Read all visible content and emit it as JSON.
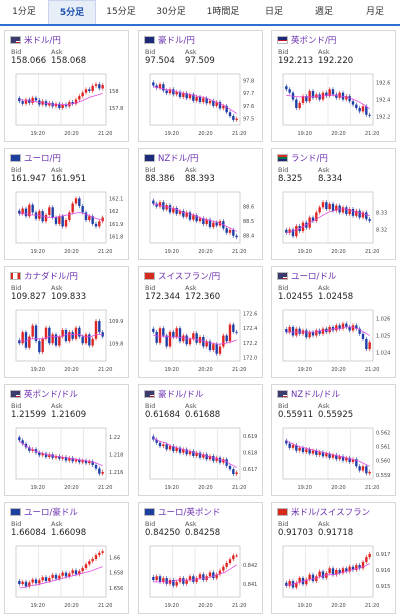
{
  "tabs": [
    {
      "label": "1分足",
      "active": false
    },
    {
      "label": "5分足",
      "active": true
    },
    {
      "label": "15分足",
      "active": false
    },
    {
      "label": "30分足",
      "active": false
    },
    {
      "label": "1時間足",
      "active": false
    },
    {
      "label": "日足",
      "active": false
    },
    {
      "label": "週足",
      "active": false
    },
    {
      "label": "月足",
      "active": false
    }
  ],
  "bid_label": "Bid",
  "ask_label": "Ask",
  "x_ticks": [
    "19:20",
    "20:20",
    "21:20"
  ],
  "colors": {
    "up": "#e02424",
    "down": "#1f3fa8",
    "ma": "#e04be0",
    "grid": "#dddddd",
    "accent": "#2f6fd0"
  },
  "cards": [
    {
      "pair": "米ドル/円",
      "flag": "us",
      "bid": "158.066",
      "ask": "158.068",
      "chart_data": {
        "type": "candlestick",
        "y_ticks": [
          "158",
          "157.8"
        ],
        "ylim": [
          157.6,
          158.2
        ],
        "tick_vals": [
          158,
          157.8
        ],
        "closes": [
          157.88,
          157.85,
          157.9,
          157.86,
          157.92,
          157.89,
          157.84,
          157.88,
          157.83,
          157.86,
          157.82,
          157.85,
          157.8,
          157.84,
          157.82,
          157.87,
          157.85,
          157.9,
          157.94,
          157.98,
          158.02,
          158.0,
          158.06,
          158.08,
          158.03,
          158.07
        ],
        "ma": [
          157.9,
          157.89,
          157.88,
          157.87,
          157.86,
          157.85,
          157.84,
          157.84,
          157.84,
          157.85,
          157.87,
          157.9,
          157.93,
          157.95,
          157.97
        ]
      }
    },
    {
      "pair": "豪ドル/円",
      "flag": "au",
      "bid": "97.504",
      "ask": "97.509",
      "chart_data": {
        "type": "candlestick",
        "y_ticks": [
          "97.8",
          "97.7",
          "97.6",
          "97.5"
        ],
        "ylim": [
          97.45,
          97.85
        ],
        "tick_vals": [
          97.8,
          97.7,
          97.6,
          97.5
        ],
        "closes": [
          97.76,
          97.74,
          97.77,
          97.72,
          97.7,
          97.73,
          97.69,
          97.71,
          97.67,
          97.7,
          97.66,
          97.69,
          97.64,
          97.67,
          97.63,
          97.66,
          97.62,
          97.64,
          97.6,
          97.63,
          97.58,
          97.6,
          97.55,
          97.52,
          97.49,
          97.5
        ],
        "ma": [
          97.75,
          97.74,
          97.73,
          97.72,
          97.71,
          97.7,
          97.69,
          97.68,
          97.67,
          97.66,
          97.64,
          97.62,
          97.6,
          97.57,
          97.54
        ]
      }
    },
    {
      "pair": "英ポンド/円",
      "flag": "gb",
      "bid": "192.213",
      "ask": "192.220",
      "chart_data": {
        "type": "candlestick",
        "y_ticks": [
          "192.6",
          "192.4",
          "192.2"
        ],
        "ylim": [
          192.1,
          192.7
        ],
        "tick_vals": [
          192.6,
          192.4,
          192.2
        ],
        "closes": [
          192.52,
          192.48,
          192.4,
          192.3,
          192.36,
          192.44,
          192.38,
          192.5,
          192.42,
          192.46,
          192.4,
          192.48,
          192.44,
          192.52,
          192.46,
          192.42,
          192.48,
          192.4,
          192.44,
          192.38,
          192.34,
          192.3,
          192.26,
          192.32,
          192.22,
          192.21
        ],
        "ma": [
          192.45,
          192.44,
          192.43,
          192.43,
          192.43,
          192.44,
          192.44,
          192.45,
          192.45,
          192.44,
          192.43,
          192.41,
          192.38,
          192.34,
          192.29
        ]
      }
    },
    {
      "pair": "ユーロ/円",
      "flag": "eu",
      "bid": "161.947",
      "ask": "161.951",
      "chart_data": {
        "type": "candlestick",
        "y_ticks": [
          "162.1",
          "162",
          "161.9",
          "161.8"
        ],
        "ylim": [
          161.75,
          162.15
        ],
        "tick_vals": [
          162.1,
          162,
          161.9,
          161.8
        ],
        "closes": [
          161.98,
          162.02,
          161.96,
          162.05,
          161.99,
          161.94,
          162.0,
          161.92,
          161.97,
          162.03,
          161.95,
          161.9,
          161.96,
          161.88,
          161.93,
          161.99,
          162.06,
          162.1,
          162.04,
          161.99,
          161.93,
          161.96,
          161.9,
          161.88,
          161.92,
          161.95
        ],
        "ma": [
          161.98,
          161.98,
          161.97,
          161.97,
          161.96,
          161.95,
          161.95,
          161.96,
          161.97,
          161.98,
          161.99,
          161.98,
          161.96,
          161.94,
          161.93
        ]
      }
    },
    {
      "pair": "NZドル/円",
      "flag": "nz",
      "bid": "88.386",
      "ask": "88.393",
      "chart_data": {
        "type": "candlestick",
        "y_ticks": [
          "88.6",
          "88.5",
          "88.4"
        ],
        "ylim": [
          88.35,
          88.7
        ],
        "tick_vals": [
          88.6,
          88.5,
          88.4
        ],
        "closes": [
          88.62,
          88.6,
          88.63,
          88.58,
          88.61,
          88.56,
          88.59,
          88.55,
          88.57,
          88.53,
          88.56,
          88.51,
          88.54,
          88.5,
          88.52,
          88.48,
          88.51,
          88.46,
          88.49,
          88.47,
          88.5,
          88.45,
          88.42,
          88.44,
          88.4,
          88.39
        ],
        "ma": [
          88.62,
          88.61,
          88.6,
          88.59,
          88.58,
          88.56,
          88.55,
          88.54,
          88.52,
          88.51,
          88.5,
          88.49,
          88.47,
          88.45,
          88.43
        ]
      }
    },
    {
      "pair": "ランド/円",
      "flag": "za",
      "bid": "8.325",
      "ask": "8.334",
      "chart_data": {
        "type": "candlestick",
        "y_ticks": [
          "8.33",
          "8.32"
        ],
        "ylim": [
          8.312,
          8.342
        ],
        "tick_vals": [
          8.33,
          8.32
        ],
        "closes": [
          8.318,
          8.32,
          8.316,
          8.322,
          8.319,
          8.324,
          8.321,
          8.327,
          8.325,
          8.33,
          8.333,
          8.336,
          8.332,
          8.335,
          8.331,
          8.334,
          8.33,
          8.333,
          8.329,
          8.332,
          8.328,
          8.331,
          8.327,
          8.33,
          8.326,
          8.325
        ],
        "ma": [
          8.318,
          8.319,
          8.32,
          8.322,
          8.324,
          8.326,
          8.328,
          8.33,
          8.331,
          8.332,
          8.332,
          8.331,
          8.33,
          8.329,
          8.328
        ]
      }
    },
    {
      "pair": "カナダドル/円",
      "flag": "ca",
      "bid": "109.827",
      "ask": "109.833",
      "chart_data": {
        "type": "candlestick",
        "y_ticks": [
          "109.9",
          "109.8"
        ],
        "ylim": [
          109.72,
          109.95
        ],
        "tick_vals": [
          109.9,
          109.8
        ],
        "closes": [
          109.8,
          109.85,
          109.78,
          109.83,
          109.88,
          109.81,
          109.76,
          109.82,
          109.87,
          109.8,
          109.84,
          109.79,
          109.83,
          109.86,
          109.81,
          109.85,
          109.82,
          109.87,
          109.83,
          109.8,
          109.84,
          109.79,
          109.82,
          109.9,
          109.85,
          109.83
        ],
        "ma": [
          109.81,
          109.81,
          109.82,
          109.82,
          109.82,
          109.83,
          109.83,
          109.83,
          109.84,
          109.84,
          109.84,
          109.83,
          109.83,
          109.84,
          109.84
        ]
      }
    },
    {
      "pair": "スイスフラン/円",
      "flag": "ch",
      "bid": "172.344",
      "ask": "172.360",
      "chart_data": {
        "type": "candlestick",
        "y_ticks": [
          "172.6",
          "172.4",
          "172.2",
          "172.0"
        ],
        "ylim": [
          171.95,
          172.65
        ],
        "tick_vals": [
          172.6,
          172.4,
          172.2,
          172.0
        ],
        "closes": [
          172.35,
          172.2,
          172.4,
          172.3,
          172.15,
          172.35,
          172.28,
          172.4,
          172.22,
          172.3,
          172.18,
          172.25,
          172.33,
          172.2,
          172.28,
          172.15,
          172.22,
          172.1,
          172.18,
          172.05,
          172.15,
          172.3,
          172.22,
          172.45,
          172.35,
          172.34
        ],
        "ma": [
          172.3,
          172.29,
          172.29,
          172.28,
          172.28,
          172.27,
          172.26,
          172.25,
          172.23,
          172.21,
          172.19,
          172.18,
          172.19,
          172.21,
          172.24
        ]
      }
    },
    {
      "pair": "ユーロ/ドル",
      "flag": "us",
      "bid": "1.02455",
      "ask": "1.02458",
      "chart_data": {
        "type": "candlestick",
        "y_ticks": [
          "1.026",
          "1.025",
          "1.024"
        ],
        "ylim": [
          1.0235,
          1.0265
        ],
        "tick_vals": [
          1.026,
          1.025,
          1.024
        ],
        "closes": [
          1.0252,
          1.0255,
          1.025,
          1.0254,
          1.0251,
          1.0253,
          1.0249,
          1.0252,
          1.025,
          1.0253,
          1.0251,
          1.0254,
          1.0252,
          1.0255,
          1.0253,
          1.0256,
          1.0254,
          1.0257,
          1.0255,
          1.0253,
          1.0256,
          1.0254,
          1.0251,
          1.0248,
          1.0242,
          1.0246
        ],
        "ma": [
          1.0252,
          1.0252,
          1.0252,
          1.0252,
          1.0252,
          1.0252,
          1.0253,
          1.0253,
          1.0254,
          1.0254,
          1.0255,
          1.0255,
          1.0254,
          1.0252,
          1.025
        ]
      }
    },
    {
      "pair": "英ポンド/ドル",
      "flag": "us",
      "bid": "1.21599",
      "ask": "1.21609",
      "chart_data": {
        "type": "candlestick",
        "y_ticks": [
          "1.22",
          "1.218",
          "1.216"
        ],
        "ylim": [
          1.2152,
          1.221
        ],
        "tick_vals": [
          1.22,
          1.218,
          1.216
        ],
        "closes": [
          1.2196,
          1.2192,
          1.2188,
          1.2184,
          1.2186,
          1.2182,
          1.2179,
          1.2181,
          1.2177,
          1.218,
          1.2176,
          1.2178,
          1.2175,
          1.2177,
          1.2173,
          1.2176,
          1.2172,
          1.2174,
          1.2171,
          1.2173,
          1.217,
          1.2172,
          1.2168,
          1.2164,
          1.2158,
          1.216
        ],
        "ma": [
          1.2195,
          1.219,
          1.2186,
          1.2183,
          1.2181,
          1.2179,
          1.2178,
          1.2177,
          1.2176,
          1.2175,
          1.2174,
          1.2173,
          1.2172,
          1.217,
          1.2167
        ]
      }
    },
    {
      "pair": "豪ドル/ドル",
      "flag": "us",
      "bid": "0.61684",
      "ask": "0.61688",
      "chart_data": {
        "type": "candlestick",
        "y_ticks": [
          "0.619",
          "0.618",
          "0.617"
        ],
        "ylim": [
          0.6164,
          0.6195
        ],
        "tick_vals": [
          0.619,
          0.618,
          0.617
        ],
        "closes": [
          0.6188,
          0.6186,
          0.6184,
          0.6185,
          0.6182,
          0.6184,
          0.6181,
          0.6183,
          0.618,
          0.6182,
          0.6179,
          0.6181,
          0.6178,
          0.618,
          0.6177,
          0.6179,
          0.6176,
          0.6178,
          0.6175,
          0.6177,
          0.6174,
          0.6176,
          0.6172,
          0.617,
          0.6167,
          0.6168
        ],
        "ma": [
          0.6189,
          0.6187,
          0.6186,
          0.6184,
          0.6183,
          0.6182,
          0.6181,
          0.618,
          0.6179,
          0.6178,
          0.6177,
          0.6176,
          0.6175,
          0.6173,
          0.6171
        ]
      }
    },
    {
      "pair": "NZドル/ドル",
      "flag": "us",
      "bid": "0.55911",
      "ask": "0.55925",
      "chart_data": {
        "type": "candlestick",
        "y_ticks": [
          "0.562",
          "0.561",
          "0.560",
          "0.559"
        ],
        "ylim": [
          0.5587,
          0.5623
        ],
        "tick_vals": [
          0.562,
          0.561,
          0.56,
          0.559
        ],
        "closes": [
          0.5612,
          0.5609,
          0.5611,
          0.5607,
          0.5609,
          0.5606,
          0.5608,
          0.5605,
          0.5607,
          0.5604,
          0.5606,
          0.5603,
          0.5605,
          0.5602,
          0.5604,
          0.5601,
          0.5603,
          0.56,
          0.5602,
          0.5599,
          0.5601,
          0.5596,
          0.5593,
          0.5596,
          0.5591,
          0.5592
        ],
        "ma": [
          0.5614,
          0.5612,
          0.561,
          0.5609,
          0.5608,
          0.5607,
          0.5606,
          0.5605,
          0.5604,
          0.5603,
          0.5602,
          0.5601,
          0.56,
          0.5598,
          0.5596
        ]
      }
    },
    {
      "pair": "ユーロ/豪ドル",
      "flag": "eu",
      "bid": "1.66084",
      "ask": "1.66098",
      "chart_data": {
        "type": "candlestick",
        "y_ticks": [
          "1.66",
          "1.658",
          "1.656"
        ],
        "ylim": [
          1.6548,
          1.6615
        ],
        "tick_vals": [
          1.66,
          1.658,
          1.656
        ],
        "closes": [
          1.6565,
          1.6568,
          1.6562,
          1.6567,
          1.6571,
          1.6566,
          1.657,
          1.6574,
          1.6569,
          1.6573,
          1.6577,
          1.6572,
          1.6576,
          1.658,
          1.6575,
          1.6579,
          1.6583,
          1.6578,
          1.6582,
          1.6586,
          1.6591,
          1.6595,
          1.6598,
          1.6603,
          1.6606,
          1.6608
        ],
        "ma": [
          1.656,
          1.6561,
          1.6563,
          1.6564,
          1.6566,
          1.6568,
          1.657,
          1.6572,
          1.6574,
          1.6576,
          1.6578,
          1.658,
          1.6582,
          1.6585,
          1.6588
        ]
      }
    },
    {
      "pair": "ユーロ/英ポンド",
      "flag": "eu",
      "bid": "0.84250",
      "ask": "0.84258",
      "chart_data": {
        "type": "candlestick",
        "y_ticks": [
          "0.842",
          "0.841"
        ],
        "ylim": [
          0.8403,
          0.843
        ],
        "tick_vals": [
          0.842,
          0.841
        ],
        "closes": [
          0.8412,
          0.8414,
          0.8411,
          0.8413,
          0.841,
          0.8412,
          0.8409,
          0.8411,
          0.8413,
          0.841,
          0.8412,
          0.8414,
          0.8411,
          0.8413,
          0.8415,
          0.8412,
          0.8414,
          0.8416,
          0.8413,
          0.8415,
          0.8417,
          0.8419,
          0.8421,
          0.8423,
          0.8425,
          0.8425
        ],
        "ma": [
          0.8411,
          0.8411,
          0.8411,
          0.8411,
          0.8412,
          0.8412,
          0.8412,
          0.8412,
          0.8413,
          0.8413,
          0.8414,
          0.8415,
          0.8416,
          0.8418,
          0.842
        ]
      }
    },
    {
      "pair": "米ドル/スイスフラン",
      "flag": "ch",
      "bid": "0.91703",
      "ask": "0.91718",
      "chart_data": {
        "type": "candlestick",
        "y_ticks": [
          "0.917",
          "0.916",
          "0.915"
        ],
        "ylim": [
          0.9143,
          0.9175
        ],
        "tick_vals": [
          0.917,
          0.916,
          0.915
        ],
        "closes": [
          0.915,
          0.9153,
          0.9149,
          0.9152,
          0.9155,
          0.9151,
          0.9154,
          0.9157,
          0.9153,
          0.9156,
          0.9159,
          0.9155,
          0.9158,
          0.9161,
          0.9157,
          0.916,
          0.9158,
          0.9161,
          0.9159,
          0.9162,
          0.916,
          0.9163,
          0.9161,
          0.9165,
          0.9168,
          0.917
        ],
        "ma": [
          0.915,
          0.9151,
          0.9152,
          0.9153,
          0.9154,
          0.9155,
          0.9156,
          0.9157,
          0.9157,
          0.9158,
          0.9159,
          0.916,
          0.9161,
          0.9162,
          0.9164
        ]
      }
    }
  ]
}
